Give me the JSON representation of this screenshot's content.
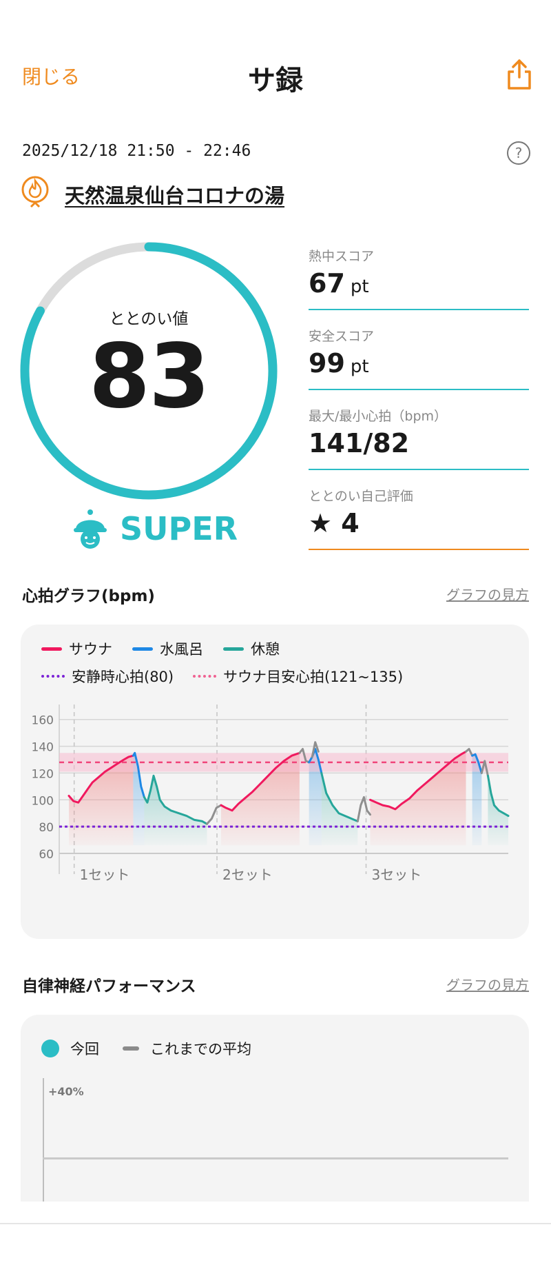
{
  "header": {
    "close": "閉じる",
    "title": "サ録",
    "share_icon": "share-icon"
  },
  "session": {
    "datetime": "2025/12/18 21:50 - 22:46",
    "help": "?",
    "facility": "天然温泉仙台コロナの湯"
  },
  "gauge": {
    "label": "ととのい値",
    "value": "83",
    "fraction": 0.83,
    "rank": "SUPER"
  },
  "metrics": [
    {
      "label": "熱中スコア",
      "value": "67",
      "unit": "pt"
    },
    {
      "label": "安全スコア",
      "value": "99",
      "unit": "pt"
    },
    {
      "label": "最大/最小心拍（bpm）",
      "value": "141/82",
      "unit": ""
    },
    {
      "label": "ととのい自己評価",
      "value": "★ 4",
      "unit": ""
    }
  ],
  "heart_section": {
    "title": "心拍グラフ(bpm)",
    "link": "グラフの見方"
  },
  "chart_data": {
    "type": "line",
    "legend": [
      {
        "name": "サウナ",
        "color": "#f0195e",
        "style": "solid"
      },
      {
        "name": "水風呂",
        "color": "#1e88e5",
        "style": "solid"
      },
      {
        "name": "休憩",
        "color": "#26a69a",
        "style": "solid"
      },
      {
        "name": "安静時心拍(80)",
        "color": "#7b22d6",
        "style": "dotted"
      },
      {
        "name": "サウナ目安心拍(121~135)",
        "color": "#f06292",
        "style": "dotted"
      }
    ],
    "yticks": [
      "160",
      "140",
      "120",
      "100",
      "80",
      "60"
    ],
    "ylim": [
      60,
      165
    ],
    "x_labels": [
      "1セット",
      "2セット",
      "3セット"
    ],
    "resting_hr": 80,
    "target_band": [
      121,
      135
    ],
    "target_line": 128,
    "series": [
      {
        "name": "サウナ",
        "points": [
          [
            0,
            103
          ],
          [
            3,
            99
          ],
          [
            6,
            98
          ],
          [
            9,
            103
          ],
          [
            12,
            108
          ],
          [
            15,
            113
          ],
          [
            19,
            117
          ],
          [
            23,
            121
          ],
          [
            27,
            124
          ],
          [
            31,
            127
          ],
          [
            35,
            130
          ],
          [
            38,
            132
          ],
          [
            41,
            133
          ]
        ]
      },
      {
        "name": "水風呂",
        "points": [
          [
            41,
            133
          ],
          [
            42,
            135
          ],
          [
            44,
            125
          ],
          [
            46,
            110
          ],
          [
            48,
            102
          ]
        ]
      },
      {
        "name": "休憩",
        "points": [
          [
            48,
            102
          ],
          [
            50,
            98
          ],
          [
            52,
            107
          ],
          [
            54,
            118
          ],
          [
            56,
            110
          ],
          [
            58,
            100
          ],
          [
            61,
            95
          ],
          [
            65,
            92
          ],
          [
            70,
            90
          ],
          [
            75,
            88
          ],
          [
            80,
            85
          ],
          [
            85,
            84
          ],
          [
            88,
            82
          ]
        ]
      },
      {
        "name": "other",
        "points": [
          [
            88,
            82
          ],
          [
            91,
            86
          ],
          [
            94,
            94
          ],
          [
            97,
            96
          ]
        ]
      },
      {
        "name": "サウナ",
        "points": [
          [
            97,
            96
          ],
          [
            100,
            94
          ],
          [
            104,
            92
          ],
          [
            108,
            97
          ],
          [
            112,
            101
          ],
          [
            117,
            106
          ],
          [
            122,
            112
          ],
          [
            127,
            118
          ],
          [
            132,
            124
          ],
          [
            137,
            129
          ],
          [
            142,
            133
          ],
          [
            147,
            135
          ]
        ]
      },
      {
        "name": "other",
        "points": [
          [
            147,
            135
          ],
          [
            149,
            138
          ],
          [
            151,
            129
          ],
          [
            153,
            128
          ]
        ]
      },
      {
        "name": "水風呂",
        "points": [
          [
            153,
            128
          ],
          [
            155,
            132
          ],
          [
            157,
            138
          ],
          [
            159,
            130
          ],
          [
            161,
            120
          ]
        ]
      },
      {
        "name": "other",
        "points": [
          [
            155,
            132
          ],
          [
            157,
            143
          ],
          [
            159,
            136
          ]
        ]
      },
      {
        "name": "休憩",
        "points": [
          [
            161,
            120
          ],
          [
            164,
            105
          ],
          [
            168,
            96
          ],
          [
            172,
            90
          ],
          [
            176,
            88
          ],
          [
            180,
            86
          ],
          [
            184,
            84
          ]
        ]
      },
      {
        "name": "other",
        "points": [
          [
            184,
            84
          ],
          [
            186,
            96
          ],
          [
            188,
            102
          ],
          [
            190,
            92
          ],
          [
            192,
            89
          ]
        ]
      },
      {
        "name": "サウナ",
        "points": [
          [
            192,
            100
          ],
          [
            196,
            98
          ],
          [
            200,
            96
          ],
          [
            204,
            95
          ],
          [
            208,
            93
          ],
          [
            212,
            97
          ],
          [
            217,
            101
          ],
          [
            222,
            107
          ],
          [
            227,
            112
          ],
          [
            232,
            117
          ],
          [
            237,
            122
          ],
          [
            242,
            127
          ],
          [
            246,
            131
          ],
          [
            250,
            134
          ],
          [
            253,
            136
          ]
        ]
      },
      {
        "name": "other",
        "points": [
          [
            253,
            136
          ],
          [
            255,
            138
          ],
          [
            257,
            133
          ]
        ]
      },
      {
        "name": "水風呂",
        "points": [
          [
            257,
            133
          ],
          [
            259,
            134
          ],
          [
            261,
            128
          ],
          [
            263,
            120
          ]
        ]
      },
      {
        "name": "other",
        "points": [
          [
            263,
            120
          ],
          [
            265,
            129
          ],
          [
            267,
            118
          ]
        ]
      },
      {
        "name": "休憩",
        "points": [
          [
            267,
            118
          ],
          [
            269,
            105
          ],
          [
            271,
            96
          ],
          [
            274,
            92
          ],
          [
            277,
            90
          ],
          [
            280,
            88
          ]
        ]
      }
    ],
    "x_max": 280,
    "set_starts": [
      6,
      97,
      192
    ]
  },
  "autonomic_section": {
    "title": "自律神経パフォーマンス",
    "link": "グラフの見方",
    "legend_current": "今回",
    "legend_average": "これまでの平均",
    "y_label": "+40%",
    "current_color": "#2bbdc5",
    "average_color": "#8a8a8a"
  }
}
